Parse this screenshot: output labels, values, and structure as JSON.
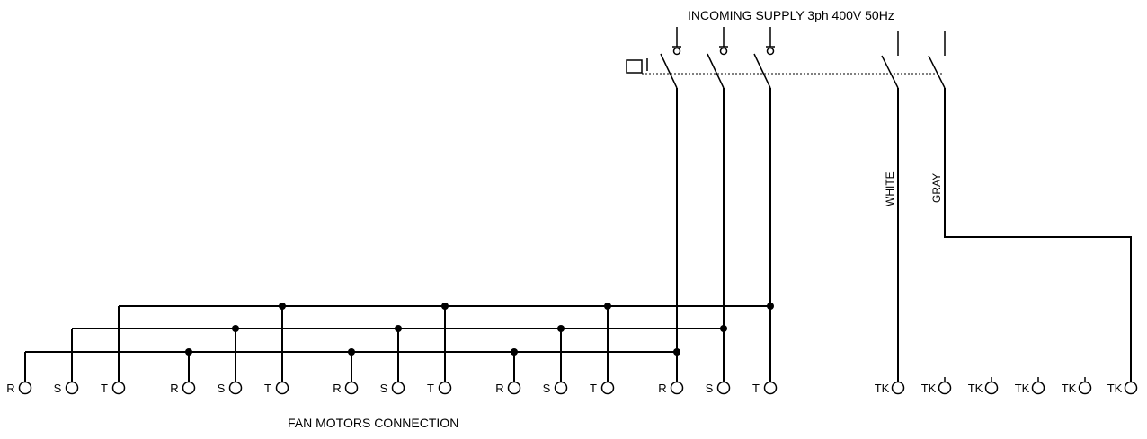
{
  "supply_label": "INCOMING SUPPLY 3ph 400V 50Hz",
  "motors_label": "FAN MOTORS CONNECTION",
  "wire_labels": {
    "white": "WHITE",
    "gray": "GRAY"
  },
  "fan_groups": [
    {
      "terminals": [
        "R",
        "S",
        "T"
      ]
    },
    {
      "terminals": [
        "R",
        "S",
        "T"
      ]
    },
    {
      "terminals": [
        "R",
        "S",
        "T"
      ]
    },
    {
      "terminals": [
        "R",
        "S",
        "T"
      ]
    },
    {
      "terminals": [
        "R",
        "S",
        "T"
      ]
    }
  ],
  "tk_terminals": [
    "TK",
    "TK",
    "TK",
    "TK",
    "TK",
    "TK"
  ],
  "colors": {
    "line": "#000000",
    "background": "#ffffff"
  }
}
